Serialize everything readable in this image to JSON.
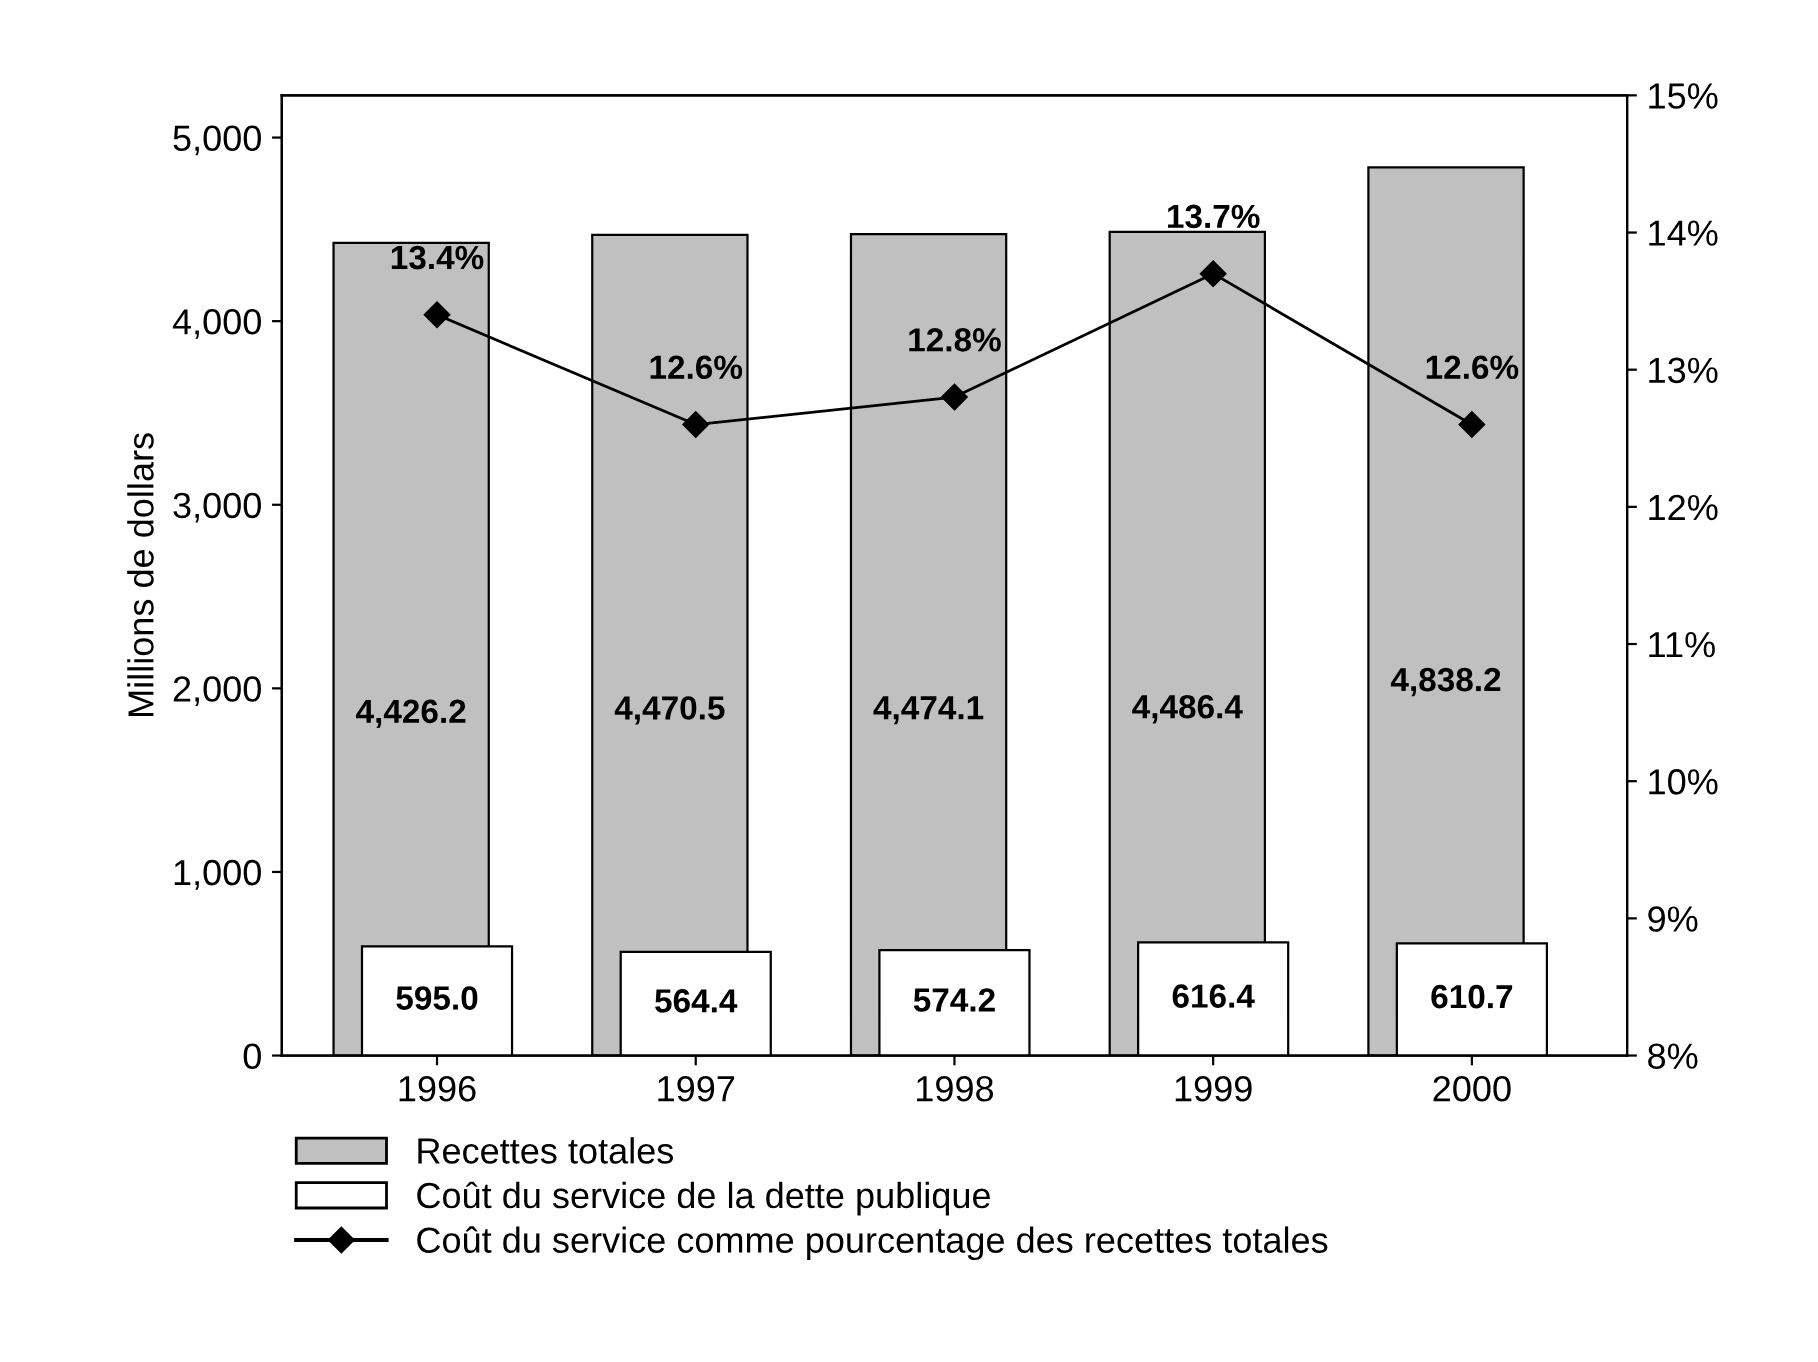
{
  "chart_data": {
    "type": "bar",
    "ylabel": "Millions de dollars",
    "categories": [
      "1996",
      "1997",
      "1998",
      "1999",
      "2000"
    ],
    "series": [
      {
        "name": "Recettes totales",
        "color": "#c0c0c0",
        "values": [
          4426.2,
          4470.5,
          4474.1,
          4486.4,
          4838.2
        ],
        "value_labels": [
          "4,426.2",
          "4,470.5",
          "4,474.1",
          "4,486.4",
          "4,838.2"
        ]
      },
      {
        "name": "Coût du service de la dette publique",
        "color": "#ffffff",
        "values": [
          595.0,
          564.4,
          574.2,
          616.4,
          610.7
        ],
        "value_labels": [
          "595.0",
          "564.4",
          "574.2",
          "616.4",
          "610.7"
        ]
      },
      {
        "name": "Coût du service comme pourcentage des recettes totales",
        "type": "line",
        "axis": "y2",
        "color": "#000000",
        "marker": "diamond",
        "values": [
          13.4,
          12.6,
          12.8,
          13.7,
          12.6
        ],
        "value_labels": [
          "13.4%",
          "12.6%",
          "12.8%",
          "13.7%",
          "12.6%"
        ]
      }
    ],
    "ylim": [
      0,
      5230
    ],
    "yticks": [
      0,
      {
        "value": 1000,
        "label": "1,000"
      },
      {
        "value": 2000,
        "label": "2,000"
      },
      {
        "value": 3000,
        "label": "3,000"
      },
      {
        "value": 4000,
        "label": "4,000"
      },
      {
        "value": 5000,
        "label": "5,000"
      }
    ],
    "y2lim": [
      8,
      15
    ],
    "y2ticks": [
      {
        "value": 8,
        "label": "8%"
      },
      {
        "value": 9,
        "label": "9%"
      },
      {
        "value": 10,
        "label": "10%"
      },
      {
        "value": 11,
        "label": "11%"
      },
      {
        "value": 12,
        "label": "12%"
      },
      {
        "value": 13,
        "label": "13%"
      },
      {
        "value": 14,
        "label": "14%"
      },
      {
        "value": 15,
        "label": "15%"
      }
    ],
    "grid": false,
    "legend": "bottom"
  }
}
